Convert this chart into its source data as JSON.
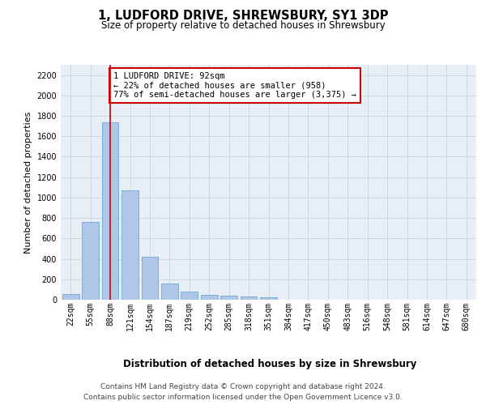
{
  "title": "1, LUDFORD DRIVE, SHREWSBURY, SY1 3DP",
  "subtitle": "Size of property relative to detached houses in Shrewsbury",
  "xlabel": "Distribution of detached houses by size in Shrewsbury",
  "ylabel": "Number of detached properties",
  "bar_values": [
    55,
    765,
    1740,
    1070,
    420,
    160,
    80,
    48,
    40,
    30,
    20,
    0,
    0,
    0,
    0,
    0,
    0,
    0,
    0,
    0,
    0
  ],
  "bar_labels": [
    "22sqm",
    "55sqm",
    "88sqm",
    "121sqm",
    "154sqm",
    "187sqm",
    "219sqm",
    "252sqm",
    "285sqm",
    "318sqm",
    "351sqm",
    "384sqm",
    "417sqm",
    "450sqm",
    "483sqm",
    "516sqm",
    "548sqm",
    "581sqm",
    "614sqm",
    "647sqm",
    "680sqm"
  ],
  "bar_color": "#aec6e8",
  "bar_edgecolor": "#5a9fd4",
  "ylim": [
    0,
    2300
  ],
  "yticks": [
    0,
    200,
    400,
    600,
    800,
    1000,
    1200,
    1400,
    1600,
    1800,
    2000,
    2200
  ],
  "property_line_x": 2,
  "annotation_text": "1 LUDFORD DRIVE: 92sqm\n← 22% of detached houses are smaller (958)\n77% of semi-detached houses are larger (3,375) →",
  "annotation_box_color": "#ffffff",
  "annotation_box_edgecolor": "#cc0000",
  "vline_color": "#cc0000",
  "grid_color": "#c8d4e0",
  "background_color": "#e8eef5",
  "footer_line1": "Contains HM Land Registry data © Crown copyright and database right 2024.",
  "footer_line2": "Contains public sector information licensed under the Open Government Licence v3.0.",
  "title_fontsize": 10.5,
  "subtitle_fontsize": 8.5,
  "xlabel_fontsize": 8.5,
  "ylabel_fontsize": 8,
  "tick_fontsize": 7,
  "annotation_fontsize": 7.5,
  "footer_fontsize": 6.5
}
